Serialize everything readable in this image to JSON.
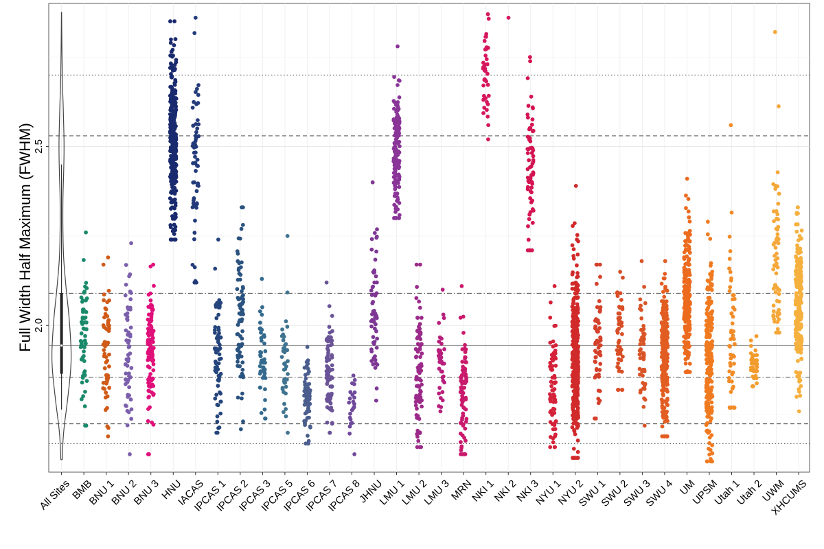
{
  "chart_data": {
    "type": "scatter",
    "subtype": "jittered strip plot with violin",
    "title": "",
    "xlabel": "",
    "ylabel": "Full Width Half Maximum (FWHM)",
    "ylim": [
      1.59,
      2.9
    ],
    "yticks": [
      2.0,
      2.5
    ],
    "grid": true,
    "reference_lines": [
      {
        "name": "outer-dotted-high",
        "y": 2.7,
        "style": "dotted"
      },
      {
        "name": "outer-dashed-high",
        "y": 2.53,
        "style": "dashed"
      },
      {
        "name": "dashdot-high",
        "y": 2.09,
        "style": "dashdot"
      },
      {
        "name": "median",
        "y": 1.944,
        "style": "solid"
      },
      {
        "name": "dashdot-low",
        "y": 1.855,
        "style": "dashdot"
      },
      {
        "name": "outer-dashed-low",
        "y": 1.725,
        "style": "dashed"
      },
      {
        "name": "outer-dotted-low",
        "y": 1.67,
        "style": "dotted"
      }
    ],
    "overall": {
      "label": "All Sites",
      "min": 1.625,
      "q1": 1.865,
      "median": 1.944,
      "q3": 2.09,
      "max": 2.875
    },
    "categories": [
      "All Sites",
      "BMB",
      "BNU 1",
      "BNU 2",
      "BNU 3",
      "HNU",
      "IACAS",
      "IPCAS 1",
      "IPCAS 2",
      "IPCAS 3",
      "IPCAS 5",
      "IPCAS 6",
      "IPCAS 7",
      "IPCAS 8",
      "JHNU",
      "LMU 1",
      "LMU 2",
      "LMU 3",
      "MRN",
      "NKI 1",
      "NKI 2",
      "NKI 3",
      "NYU 1",
      "NYU 2",
      "SWU 1",
      "SWU 2",
      "SWU 3",
      "SWU 4",
      "UM",
      "UPSM",
      "Utah 1",
      "Utah 2",
      "UWM",
      "XHCUMS"
    ],
    "series": [
      {
        "name": "BMB",
        "color": "#1b8a6b",
        "n": 60,
        "min": 1.72,
        "max": 2.26,
        "mean": 1.98,
        "sd": 0.1
      },
      {
        "name": "BNU 1",
        "color": "#d05a17",
        "n": 60,
        "min": 1.69,
        "max": 2.19,
        "mean": 1.92,
        "sd": 0.1
      },
      {
        "name": "BNU 2",
        "color": "#7b5fab",
        "n": 60,
        "min": 1.64,
        "max": 2.23,
        "mean": 1.93,
        "sd": 0.11
      },
      {
        "name": "BNU 3",
        "color": "#e0107b",
        "n": 110,
        "min": 1.64,
        "max": 2.17,
        "mean": 1.94,
        "sd": 0.1
      },
      {
        "name": "HNU",
        "color": "#1a2a6e",
        "n": 300,
        "min": 2.24,
        "max": 2.85,
        "mean": 2.52,
        "sd": 0.12
      },
      {
        "name": "IACAS",
        "color": "#233b7a",
        "n": 60,
        "min": 2.12,
        "max": 2.86,
        "mean": 2.48,
        "sd": 0.14
      },
      {
        "name": "IPCAS 1",
        "color": "#25457c",
        "n": 70,
        "min": 1.7,
        "max": 2.24,
        "mean": 1.92,
        "sd": 0.1
      },
      {
        "name": "IPCAS 2",
        "color": "#2b5380",
        "n": 80,
        "min": 1.71,
        "max": 2.33,
        "mean": 2.0,
        "sd": 0.12
      },
      {
        "name": "IPCAS 3",
        "color": "#346a8d",
        "n": 50,
        "min": 1.74,
        "max": 2.13,
        "mean": 1.9,
        "sd": 0.08
      },
      {
        "name": "IPCAS 5",
        "color": "#3f7390",
        "n": 40,
        "min": 1.7,
        "max": 2.25,
        "mean": 1.9,
        "sd": 0.09
      },
      {
        "name": "IPCAS 6",
        "color": "#4b5e8e",
        "n": 70,
        "min": 1.67,
        "max": 1.94,
        "mean": 1.79,
        "sd": 0.06
      },
      {
        "name": "IPCAS 7",
        "color": "#6a5497",
        "n": 80,
        "min": 1.7,
        "max": 2.12,
        "mean": 1.88,
        "sd": 0.08
      },
      {
        "name": "IPCAS 8",
        "color": "#6f4a9c",
        "n": 25,
        "min": 1.64,
        "max": 1.86,
        "mean": 1.76,
        "sd": 0.05
      },
      {
        "name": "JHNU",
        "color": "#7e3794",
        "n": 60,
        "min": 1.79,
        "max": 2.4,
        "mean": 2.05,
        "sd": 0.12
      },
      {
        "name": "LMU 1",
        "color": "#8a3598",
        "n": 150,
        "min": 2.3,
        "max": 2.78,
        "mean": 2.48,
        "sd": 0.09
      },
      {
        "name": "LMU 2",
        "color": "#9c2a8a",
        "n": 90,
        "min": 1.66,
        "max": 2.17,
        "mean": 1.86,
        "sd": 0.1
      },
      {
        "name": "LMU 3",
        "color": "#b81f7c",
        "n": 40,
        "min": 1.76,
        "max": 2.1,
        "mean": 1.89,
        "sd": 0.07
      },
      {
        "name": "MRN",
        "color": "#c91a6c",
        "n": 80,
        "min": 1.64,
        "max": 2.11,
        "mean": 1.8,
        "sd": 0.09
      },
      {
        "name": "NKI 1",
        "color": "#d6175e",
        "n": 40,
        "min": 2.52,
        "max": 2.87,
        "mean": 2.72,
        "sd": 0.08
      },
      {
        "name": "NKI 2",
        "color": "#d6175e",
        "n": 1,
        "min": 2.86,
        "max": 2.86,
        "mean": 2.86,
        "sd": 0.0
      },
      {
        "name": "NKI 3",
        "color": "#d41452",
        "n": 70,
        "min": 2.21,
        "max": 2.75,
        "mean": 2.45,
        "sd": 0.12
      },
      {
        "name": "NYU 1",
        "color": "#d4223a",
        "n": 80,
        "min": 1.66,
        "max": 2.11,
        "mean": 1.82,
        "sd": 0.09
      },
      {
        "name": "NYU 2",
        "color": "#d12a2a",
        "n": 350,
        "min": 1.63,
        "max": 2.39,
        "mean": 1.9,
        "sd": 0.13
      },
      {
        "name": "SWU 1",
        "color": "#d4402a",
        "n": 60,
        "min": 1.74,
        "max": 2.17,
        "mean": 1.95,
        "sd": 0.09
      },
      {
        "name": "SWU 2",
        "color": "#d84e26",
        "n": 50,
        "min": 1.82,
        "max": 2.15,
        "mean": 1.95,
        "sd": 0.07
      },
      {
        "name": "SWU 3",
        "color": "#d95426",
        "n": 50,
        "min": 1.72,
        "max": 2.18,
        "mean": 1.92,
        "sd": 0.09
      },
      {
        "name": "SWU 4",
        "color": "#e25d22",
        "n": 230,
        "min": 1.69,
        "max": 2.18,
        "mean": 1.92,
        "sd": 0.1
      },
      {
        "name": "UM",
        "color": "#ec6b1e",
        "n": 230,
        "min": 1.87,
        "max": 2.41,
        "mean": 2.08,
        "sd": 0.1
      },
      {
        "name": "UPSM",
        "color": "#f07a20",
        "n": 220,
        "min": 1.62,
        "max": 2.29,
        "mean": 1.9,
        "sd": 0.13
      },
      {
        "name": "Utah 1",
        "color": "#f28c28",
        "n": 60,
        "min": 1.77,
        "max": 2.56,
        "mean": 1.95,
        "sd": 0.13
      },
      {
        "name": "Utah 2",
        "color": "#f39c2e",
        "n": 40,
        "min": 1.83,
        "max": 1.97,
        "mean": 1.89,
        "sd": 0.03
      },
      {
        "name": "UWM",
        "color": "#f5a83a",
        "n": 70,
        "min": 1.98,
        "max": 2.82,
        "mean": 2.15,
        "sd": 0.14
      },
      {
        "name": "XHCUMS",
        "color": "#f5b03e",
        "n": 220,
        "min": 1.76,
        "max": 2.33,
        "mean": 2.05,
        "sd": 0.11
      }
    ]
  }
}
